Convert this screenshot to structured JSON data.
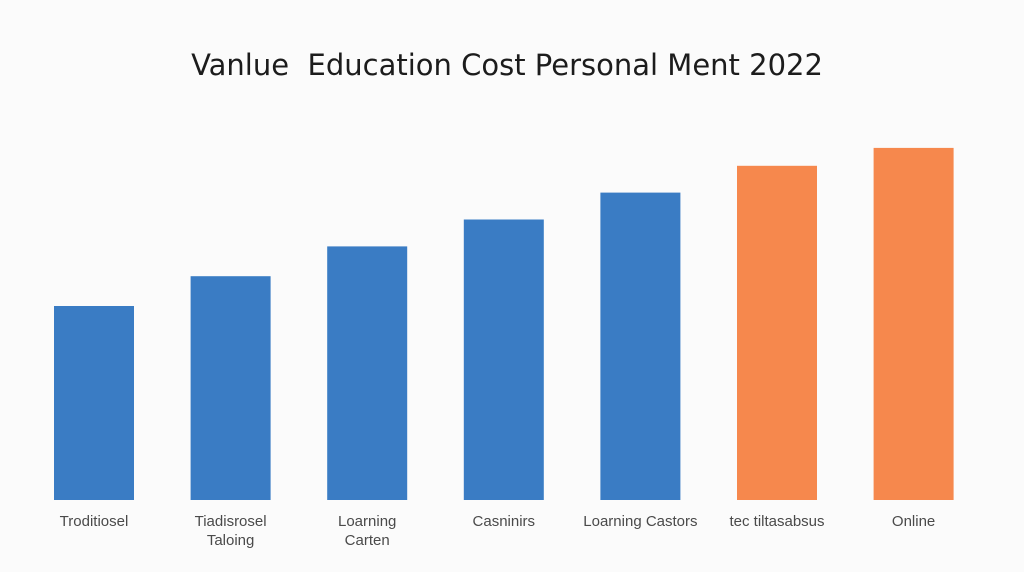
{
  "chart_data": {
    "type": "bar",
    "title": "Vanlue  Education Cost Personal Ment 2022",
    "xlabel": "",
    "ylabel": "",
    "categories": [
      [
        "Troditiosel"
      ],
      [
        "Tiadisrosel",
        "Taloing"
      ],
      [
        "Loarning",
        "Carten"
      ],
      [
        "Casninirs"
      ],
      [
        "Loarning Castors"
      ],
      [
        "tec tiltasabsus"
      ],
      [
        "Online"
      ]
    ],
    "values": [
      65,
      75,
      85,
      94,
      103,
      112,
      118
    ],
    "ylim": [
      0,
      125
    ],
    "grid": false,
    "legend": "none",
    "bar_colors": [
      "#3a7cc4",
      "#3a7cc4",
      "#3a7cc4",
      "#3a7cc4",
      "#3a7cc4",
      "#f6884d",
      "#f6884d"
    ]
  }
}
